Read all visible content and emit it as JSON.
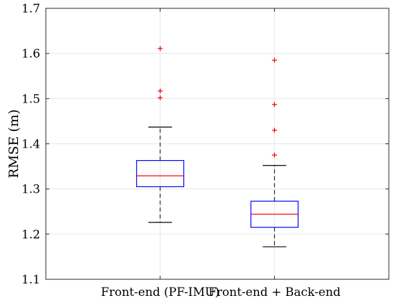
{
  "chart_data": {
    "type": "box",
    "title": "",
    "xlabel": "",
    "ylabel": "RMSE (m)",
    "ylim": [
      1.1,
      1.7
    ],
    "yticks": [
      "1.1",
      "1.2",
      "1.3",
      "1.4",
      "1.5",
      "1.6",
      "1.7"
    ],
    "grid": true,
    "categories": [
      "Front-end (PF-IMU)",
      "Front-end + Back-end"
    ],
    "boxes": [
      {
        "category": "Front-end (PF-IMU)",
        "whisker_low": 1.226,
        "q1": 1.305,
        "median": 1.329,
        "q3": 1.363,
        "whisker_high": 1.437,
        "outliers": [
          1.502,
          1.517,
          1.611
        ]
      },
      {
        "category": "Front-end + Back-end",
        "whisker_low": 1.172,
        "q1": 1.215,
        "median": 1.244,
        "q3": 1.273,
        "whisker_high": 1.352,
        "outliers": [
          1.375,
          1.43,
          1.487,
          1.585
        ]
      }
    ],
    "colors": {
      "box": "#0000ff",
      "median": "#ff0000",
      "outlier": "#ff0000",
      "whisker": "#000000",
      "grid": "#e6e6e6"
    }
  }
}
